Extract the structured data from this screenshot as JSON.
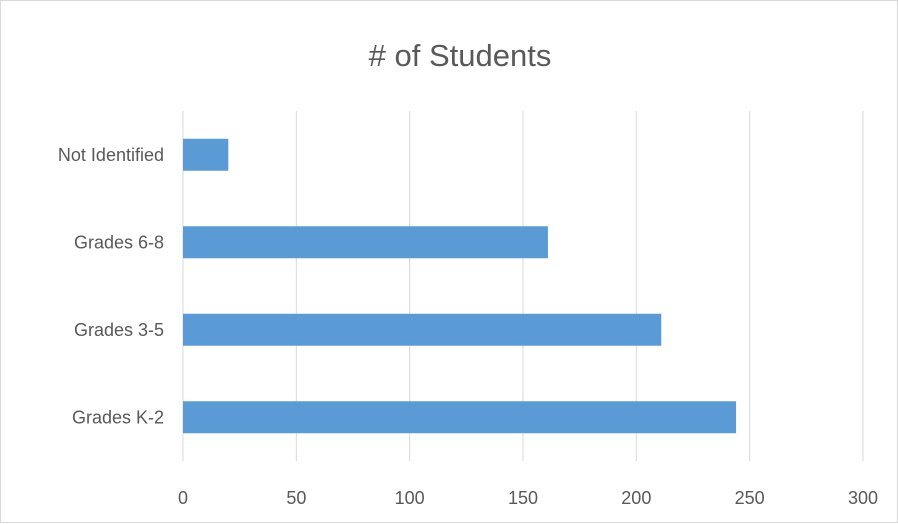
{
  "chart_data": {
    "type": "bar",
    "orientation": "horizontal",
    "title": "# of Students",
    "xlabel": "",
    "ylabel": "",
    "categories": [
      "Grades K-2",
      "Grades 3-5",
      "Grades 6-8",
      "Not Identified"
    ],
    "values": [
      244,
      211,
      161,
      20
    ],
    "xlim": [
      0,
      300
    ],
    "xticks": [
      0,
      50,
      100,
      150,
      200,
      250,
      300
    ],
    "grid": true,
    "legend": "none",
    "bar_color": "#5b9bd5",
    "grid_color": "#d9d9d9"
  }
}
